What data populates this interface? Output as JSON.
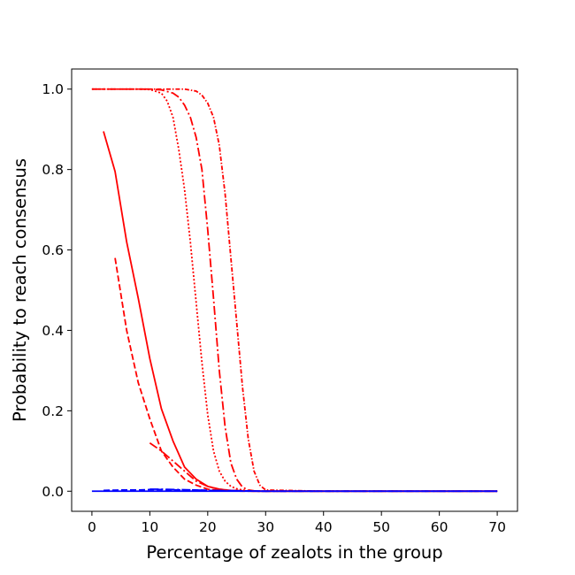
{
  "chart_data": {
    "type": "line",
    "title": "",
    "xlabel": "Percentage of zealots in the group",
    "ylabel": "Probability to reach consensus",
    "xlim": [
      -3.5,
      73.5
    ],
    "ylim": [
      -0.05,
      1.05
    ],
    "xticks": [
      0,
      10,
      20,
      30,
      40,
      50,
      60,
      70
    ],
    "yticks": [
      0.0,
      0.2,
      0.4,
      0.6,
      0.8,
      1.0
    ],
    "xtick_labels": [
      "0",
      "10",
      "20",
      "30",
      "40",
      "50",
      "60",
      "70"
    ],
    "ytick_labels": [
      "0.0",
      "0.2",
      "0.4",
      "0.6",
      "0.8",
      "1.0"
    ],
    "grid": false,
    "legend": "none",
    "series": [
      {
        "color": "#ff0000",
        "style": "solid",
        "x": [
          2,
          4,
          6,
          8,
          10,
          12,
          14,
          16,
          18,
          20,
          22,
          24,
          26,
          28,
          30,
          40,
          50,
          60,
          70
        ],
        "y": [
          0.895,
          0.795,
          0.62,
          0.48,
          0.33,
          0.205,
          0.125,
          0.06,
          0.03,
          0.012,
          0.005,
          0.002,
          0.001,
          0,
          0,
          0,
          0,
          0,
          0
        ]
      },
      {
        "color": "#ff0000",
        "style": "dashed",
        "x": [
          4,
          6,
          8,
          10,
          12,
          14,
          16,
          18,
          20,
          22,
          24,
          26,
          28,
          30,
          40,
          50,
          60,
          70
        ],
        "y": [
          0.58,
          0.4,
          0.27,
          0.18,
          0.1,
          0.06,
          0.03,
          0.015,
          0.005,
          0.002,
          0.001,
          0,
          0,
          0,
          0,
          0,
          0,
          0
        ]
      },
      {
        "color": "#ff0000",
        "style": "dashdot",
        "x": [
          10,
          12,
          14,
          16,
          18,
          20,
          22,
          24,
          26,
          28,
          30,
          40,
          50,
          60,
          70
        ],
        "y": [
          0.12,
          0.1,
          0.075,
          0.05,
          0.025,
          0.012,
          0.005,
          0.002,
          0.001,
          0,
          0,
          0,
          0,
          0,
          0
        ]
      },
      {
        "color": "#ff0000",
        "style": "dotted",
        "x": [
          0,
          8,
          10,
          12,
          13,
          14,
          15,
          16,
          17,
          18,
          19,
          20,
          21,
          22,
          23,
          24,
          25,
          26,
          27,
          28,
          30,
          40,
          50,
          60,
          70
        ],
        "y": [
          1.0,
          1.0,
          0.999,
          0.99,
          0.97,
          0.93,
          0.85,
          0.75,
          0.62,
          0.47,
          0.32,
          0.19,
          0.1,
          0.05,
          0.025,
          0.012,
          0.006,
          0.003,
          0.001,
          0,
          0,
          0,
          0,
          0,
          0
        ]
      },
      {
        "color": "#ff0000",
        "style": "dashdot",
        "x": [
          0,
          10,
          12,
          14,
          15,
          16,
          17,
          18,
          19,
          20,
          21,
          22,
          23,
          24,
          25,
          26,
          27,
          28,
          30,
          40,
          50,
          60,
          70
        ],
        "y": [
          1.0,
          1.0,
          0.998,
          0.99,
          0.98,
          0.96,
          0.93,
          0.88,
          0.8,
          0.65,
          0.48,
          0.3,
          0.16,
          0.07,
          0.03,
          0.01,
          0.003,
          0.001,
          0,
          0,
          0,
          0,
          0
        ]
      },
      {
        "color": "#ff0000",
        "style": "dense-dashdot",
        "x": [
          0,
          10,
          14,
          16,
          18,
          19,
          20,
          21,
          22,
          23,
          24,
          25,
          26,
          27,
          28,
          29,
          30,
          40,
          50,
          60,
          70
        ],
        "y": [
          1.0,
          1.0,
          1.0,
          1.0,
          0.995,
          0.985,
          0.965,
          0.93,
          0.86,
          0.74,
          0.58,
          0.42,
          0.26,
          0.13,
          0.05,
          0.015,
          0.003,
          0,
          0,
          0,
          0
        ]
      },
      {
        "color": "#0000ff",
        "style": "solid",
        "x": [
          0,
          10,
          20,
          30,
          40,
          50,
          60,
          70
        ],
        "y": [
          0,
          0,
          0,
          0,
          0,
          0,
          0,
          0
        ]
      },
      {
        "color": "#0000ff",
        "style": "dashed",
        "x": [
          2,
          5,
          8,
          10,
          12,
          15,
          18,
          20,
          25,
          30,
          40,
          50,
          60,
          70
        ],
        "y": [
          0.002,
          0.003,
          0.003,
          0.004,
          0.004,
          0.003,
          0.003,
          0.002,
          0.001,
          0,
          0,
          0,
          0,
          0
        ]
      },
      {
        "color": "#0000ff",
        "style": "dashdot",
        "x": [
          10,
          12,
          15,
          18,
          20,
          25,
          30,
          40,
          50,
          60,
          70
        ],
        "y": [
          0.005,
          0.005,
          0.004,
          0.003,
          0.002,
          0.001,
          0,
          0,
          0,
          0,
          0
        ]
      }
    ]
  }
}
